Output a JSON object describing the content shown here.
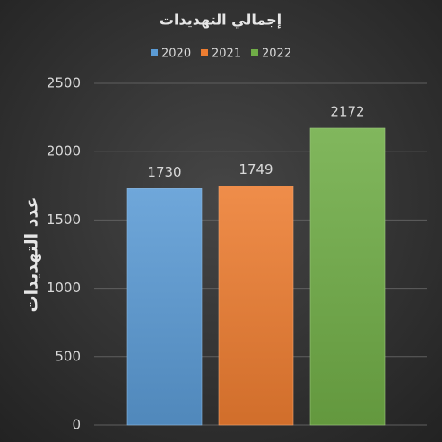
{
  "chart_data": {
    "type": "bar",
    "title": "إجمالي التهديدات",
    "y_label": "عدد التهديدات",
    "categories": [
      null
    ],
    "series": [
      {
        "name": "2020",
        "color": "#5b9bd5",
        "values": [
          1730
        ]
      },
      {
        "name": "2021",
        "color": "#ed7d31",
        "values": [
          1749
        ]
      },
      {
        "name": "2022",
        "color": "#70ad47",
        "values": [
          2172
        ]
      }
    ],
    "ylim": [
      0,
      2500
    ],
    "yticks": [
      0,
      500,
      1000,
      1500,
      2000,
      2500
    ],
    "grid": true,
    "legend": "top",
    "data_labels": true
  }
}
